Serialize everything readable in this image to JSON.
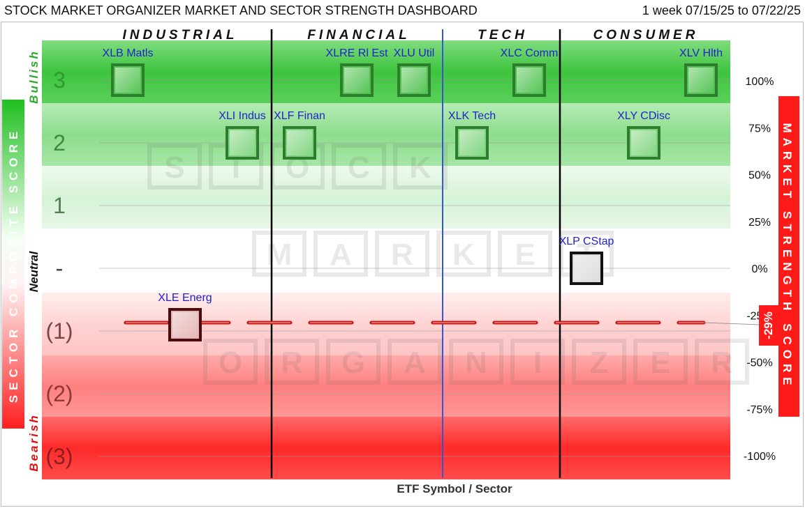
{
  "title": "STOCK MARKET ORGANIZER MARKET AND SECTOR STRENGTH DASHBOARD",
  "period": "1 week 07/15/25 to 07/22/25",
  "xlabel": "ETF Symbol / Sector",
  "left_axis_label": "SECTOR COMPOSITE SCORE",
  "right_axis_label": "MARKET STRENGTH SCORE",
  "bullish_label": "Bullish",
  "neutral_label": "Neutral",
  "bearish_label": "Bearish",
  "watermark": [
    "S",
    "T",
    "O",
    "C",
    "K",
    "M",
    "A",
    "R",
    "K",
    "E",
    "T",
    "O",
    "R",
    "G",
    "A",
    "N",
    "I",
    "Z",
    "E",
    "R"
  ],
  "colors": {
    "bullish_strong": "#3ec43e",
    "bullish_light": "#d6f3d6",
    "bearish_strong": "#ff2a2a",
    "bearish_light": "#ffd8d8",
    "market_line": "#cc1111",
    "tech_divider": "#3355dd",
    "etf_text": "#2222cc",
    "box_bullish": "#2e7d2e",
    "box_neutral": "#111111",
    "box_bearish": "#4a0d0d"
  },
  "chart_data": {
    "type": "scatter",
    "sectors": [
      "INDUSTRIAL",
      "FINANCIAL",
      "TECH",
      "CONSUMER"
    ],
    "score_levels": [
      "3",
      "2",
      "1",
      "-",
      "(1)",
      "(2)",
      "(3)"
    ],
    "score_values": [
      3,
      2,
      1,
      0,
      -1,
      -2,
      -3
    ],
    "right_axis_ticks": [
      "100%",
      "75%",
      "50%",
      "25%",
      "0%",
      "-25%",
      "-50%",
      "-75%",
      "-100%"
    ],
    "right_axis_values": [
      100,
      75,
      50,
      25,
      0,
      -25,
      -50,
      -75,
      -100
    ],
    "market_strength": {
      "value": -29,
      "label": "-29%"
    },
    "points": [
      {
        "label": "XLB Matls",
        "sector": "INDUSTRIAL",
        "score": 3
      },
      {
        "label": "XLI Indus",
        "sector": "INDUSTRIAL",
        "score": 2
      },
      {
        "label": "XLE Energ",
        "sector": "INDUSTRIAL",
        "score": -1
      },
      {
        "label": "XLF Finan",
        "sector": "FINANCIAL",
        "score": 2
      },
      {
        "label": "XLRE Rl Est",
        "sector": "FINANCIAL",
        "score": 3
      },
      {
        "label": "XLU Util",
        "sector": "FINANCIAL",
        "score": 3
      },
      {
        "label": "XLK Tech",
        "sector": "TECH",
        "score": 2
      },
      {
        "label": "XLC Comm",
        "sector": "TECH",
        "score": 3
      },
      {
        "label": "XLP CStap",
        "sector": "CONSUMER",
        "score": 0
      },
      {
        "label": "XLY CDisc",
        "sector": "CONSUMER",
        "score": 2
      },
      {
        "label": "XLV Hlth",
        "sector": "CONSUMER",
        "score": 3
      }
    ]
  }
}
